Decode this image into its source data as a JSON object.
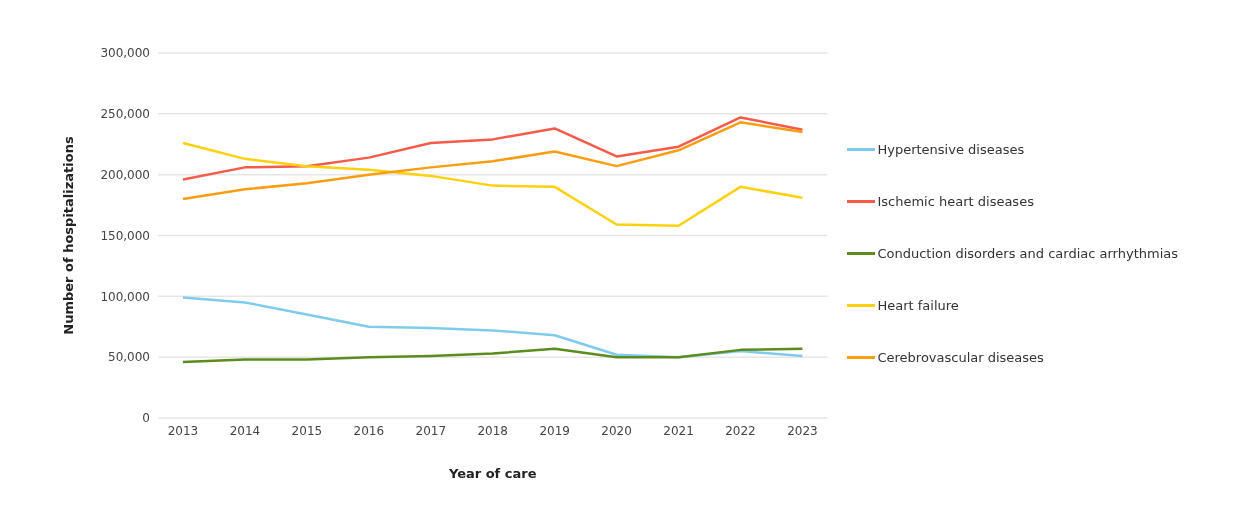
{
  "chart_data": {
    "type": "line",
    "xlabel": "Year of care",
    "ylabel": "Number of hospitalizations",
    "categories": [
      "2013",
      "2014",
      "2015",
      "2016",
      "2017",
      "2018",
      "2019",
      "2020",
      "2021",
      "2022",
      "2023"
    ],
    "series": [
      {
        "name": "Hypertensive diseases",
        "color": "#7fcbec",
        "values": [
          99000,
          95000,
          85000,
          75000,
          74000,
          72000,
          68000,
          52000,
          50000,
          55000,
          51000
        ]
      },
      {
        "name": "Ischemic heart diseases",
        "color": "#f65b4a",
        "values": [
          196000,
          206000,
          207000,
          214000,
          226000,
          229000,
          238000,
          215000,
          223000,
          247000,
          237000
        ]
      },
      {
        "name": "Conduction disorders and cardiac arrhythmias",
        "color": "#5d8c1e",
        "values": [
          46000,
          48000,
          48000,
          50000,
          51000,
          53000,
          57000,
          50000,
          50000,
          56000,
          57000
        ]
      },
      {
        "name": "Heart failure",
        "color": "#fdd10f",
        "values": [
          226000,
          213000,
          207000,
          204000,
          199000,
          191000,
          190000,
          159000,
          158000,
          190000,
          181000
        ]
      },
      {
        "name": "Cerebrovascular diseases",
        "color": "#fb9d13",
        "values": [
          180000,
          188000,
          193000,
          200000,
          206000,
          211000,
          219000,
          207000,
          220000,
          243000,
          235000
        ]
      }
    ],
    "ylim": [
      0,
      300000
    ],
    "yticks": [
      0,
      {
        "value": 50000,
        "label": "50,000"
      },
      {
        "value": 100000,
        "label": "100,000"
      },
      {
        "value": 150000,
        "label": "150,000"
      },
      {
        "value": 200000,
        "label": "200,000"
      },
      {
        "value": 250000,
        "label": "250,000"
      },
      {
        "value": 300000,
        "label": "300,000"
      }
    ],
    "grid": "y",
    "legend": "right",
    "marker": "none",
    "line_style": "solid"
  }
}
